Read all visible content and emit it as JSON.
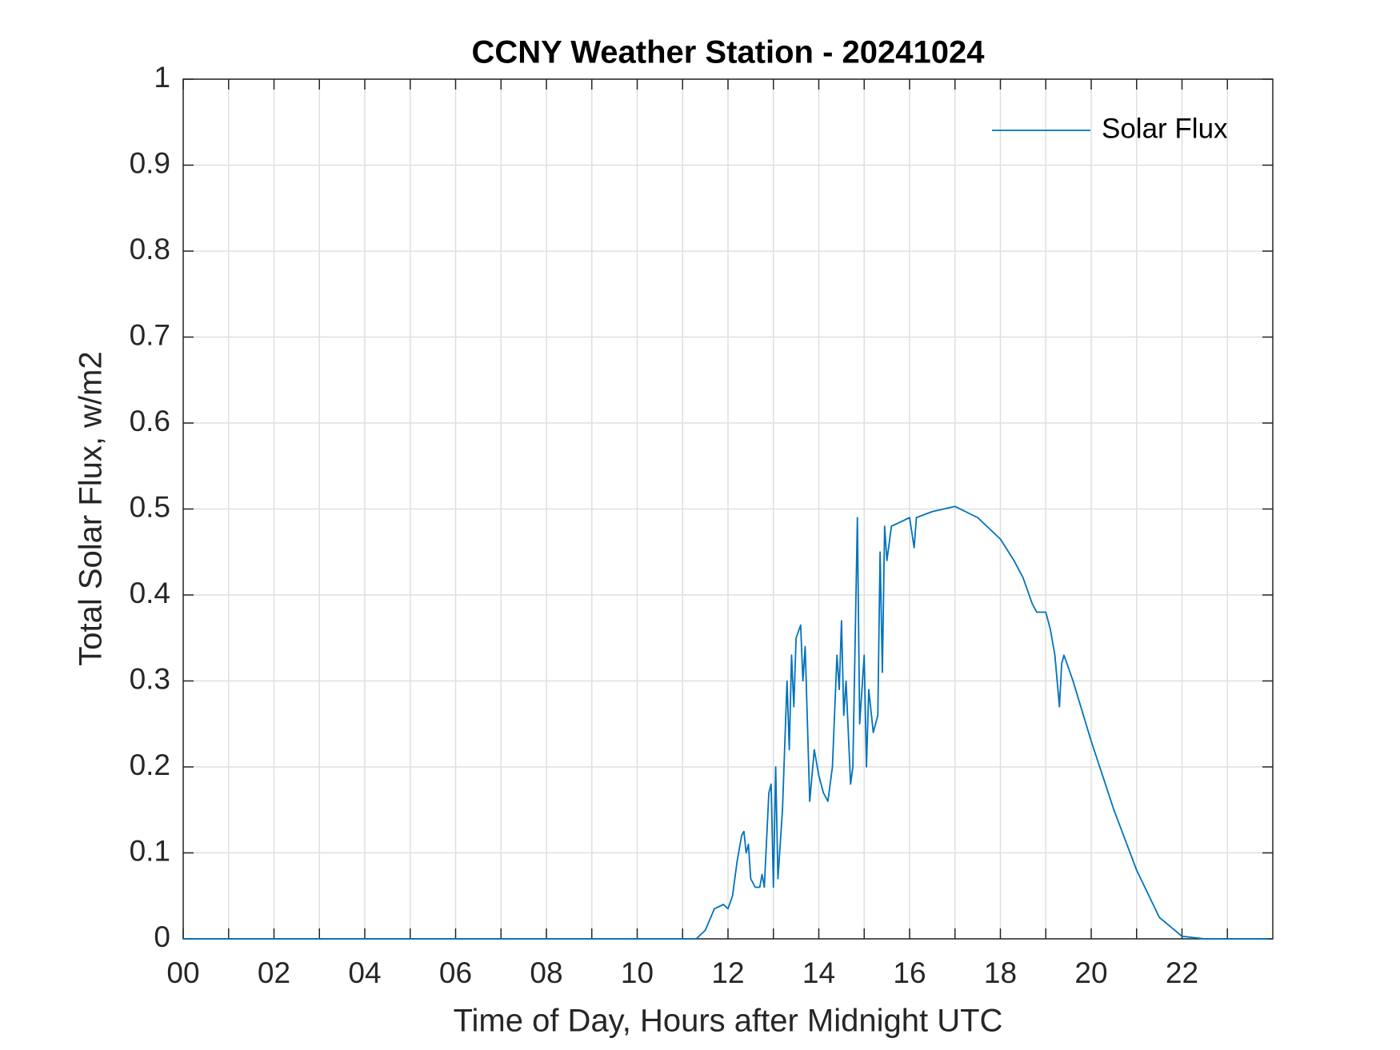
{
  "chart_data": {
    "type": "line",
    "title": "CCNY Weather Station - 20241024",
    "x_label": "Time of Day, Hours after Midnight UTC",
    "y_label": "Total Solar Flux, w/m2",
    "xlim": [
      0,
      24
    ],
    "ylim": [
      0,
      1
    ],
    "xticks": [
      {
        "value": 0,
        "label": "00"
      },
      {
        "value": 2,
        "label": "02"
      },
      {
        "value": 4,
        "label": "04"
      },
      {
        "value": 6,
        "label": "06"
      },
      {
        "value": 8,
        "label": "08"
      },
      10,
      12,
      14,
      16,
      18,
      20,
      22
    ],
    "x_minor_ticks": [
      1,
      3,
      5,
      7,
      9,
      11,
      13,
      15,
      17,
      19,
      21,
      23
    ],
    "yticks": [
      0,
      0.1,
      0.2,
      0.3,
      0.4,
      0.5,
      0.6,
      0.7,
      0.8,
      0.9,
      1
    ],
    "grid": true,
    "legend": "upper right",
    "x": [
      0,
      2,
      4,
      6,
      8,
      10,
      11.3,
      11.5,
      11.7,
      11.9,
      12.0,
      12.1,
      12.2,
      12.3,
      12.35,
      12.4,
      12.45,
      12.5,
      12.6,
      12.7,
      12.75,
      12.8,
      12.9,
      12.95,
      13.0,
      13.05,
      13.1,
      13.2,
      13.3,
      13.35,
      13.4,
      13.45,
      13.5,
      13.6,
      13.65,
      13.7,
      13.8,
      13.9,
      14.0,
      14.1,
      14.2,
      14.3,
      14.4,
      14.45,
      14.5,
      14.55,
      14.6,
      14.7,
      14.75,
      14.85,
      14.9,
      15.0,
      15.05,
      15.1,
      15.2,
      15.3,
      15.35,
      15.4,
      15.45,
      15.5,
      15.6,
      15.8,
      16.0,
      16.1,
      16.15,
      16.5,
      17.0,
      17.5,
      18.0,
      18.3,
      18.5,
      18.7,
      18.8,
      19.0,
      19.1,
      19.2,
      19.3,
      19.35,
      19.4,
      19.6,
      20.0,
      20.5,
      21.0,
      21.5,
      22.0,
      22.5,
      23.9
    ],
    "series": [
      {
        "name": "Solar Flux",
        "color": "#0072bd",
        "values": [
          0,
          0,
          0,
          0,
          0,
          0,
          0,
          0.01,
          0.035,
          0.04,
          0.035,
          0.05,
          0.09,
          0.12,
          0.125,
          0.1,
          0.11,
          0.07,
          0.06,
          0.06,
          0.075,
          0.06,
          0.17,
          0.18,
          0.06,
          0.2,
          0.07,
          0.15,
          0.3,
          0.22,
          0.33,
          0.27,
          0.35,
          0.365,
          0.3,
          0.34,
          0.16,
          0.22,
          0.19,
          0.17,
          0.16,
          0.2,
          0.33,
          0.29,
          0.37,
          0.26,
          0.3,
          0.18,
          0.2,
          0.49,
          0.25,
          0.33,
          0.2,
          0.29,
          0.24,
          0.26,
          0.45,
          0.31,
          0.48,
          0.44,
          0.48,
          0.485,
          0.49,
          0.455,
          0.49,
          0.497,
          0.503,
          0.49,
          0.465,
          0.44,
          0.42,
          0.39,
          0.38,
          0.38,
          0.36,
          0.33,
          0.27,
          0.32,
          0.33,
          0.3,
          0.23,
          0.15,
          0.08,
          0.025,
          0.003,
          0,
          0
        ]
      }
    ]
  }
}
